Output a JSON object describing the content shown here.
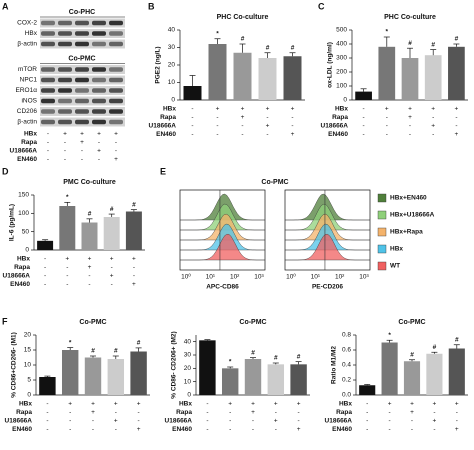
{
  "panel_labels": [
    "A",
    "B",
    "C",
    "D",
    "E",
    "F"
  ],
  "conditions": {
    "labels": [
      "HBx",
      "Rapa",
      "U18666A",
      "EN460"
    ],
    "signs": [
      [
        "-",
        "+",
        "+",
        "+",
        "+"
      ],
      [
        "-",
        "-",
        "+",
        "-",
        "-"
      ],
      [
        "-",
        "-",
        "-",
        "+",
        "-"
      ],
      [
        "-",
        "-",
        "-",
        "-",
        "+"
      ]
    ]
  },
  "blot": {
    "groups": [
      {
        "title": "Co-PHC",
        "rows": [
          "COX-2",
          "HBx",
          "β-actin"
        ]
      },
      {
        "title": "Co-PMC",
        "rows": [
          "mTOR",
          "NPC1",
          "ERO1α",
          "iNOS",
          "CD206",
          "β-actin"
        ]
      }
    ]
  },
  "flow": {
    "title": "Co-PMC",
    "xlabels": [
      "APC-CD86",
      "PE-CD206"
    ],
    "xticks": [
      "10⁰",
      "10¹",
      "10²",
      "10³"
    ],
    "series": [
      {
        "name": "HBx+EN460",
        "color": "#4f7f3a"
      },
      {
        "name": "HBx+U18666A",
        "color": "#8fd07a"
      },
      {
        "name": "HBx+Rapa",
        "color": "#f4b36b"
      },
      {
        "name": "HBx",
        "color": "#4fc3e8"
      },
      {
        "name": "WT",
        "color": "#f06060"
      }
    ]
  },
  "chart_data": [
    {
      "type": "bar",
      "title": "PHC Co-culture",
      "ylabel": "PGE2 (ng/L)",
      "values": [
        8,
        32,
        27,
        24,
        25
      ],
      "errors": [
        6,
        3,
        5,
        3,
        2
      ],
      "annotations": [
        null,
        "*",
        "#",
        "#",
        "#"
      ],
      "colors": [
        "#111111",
        "#777777",
        "#999999",
        "#cccccc",
        "#555555"
      ],
      "ylim": [
        0,
        40
      ],
      "yticks": [
        0,
        10,
        20,
        30,
        40
      ]
    },
    {
      "type": "bar",
      "title": "PHC Co-culture",
      "ylabel": "ox-LDL (ng/ml)",
      "values": [
        60,
        380,
        300,
        320,
        380
      ],
      "errors": [
        20,
        70,
        70,
        40,
        20
      ],
      "annotations": [
        null,
        "*",
        "#",
        "#",
        "#"
      ],
      "colors": [
        "#111111",
        "#777777",
        "#999999",
        "#cccccc",
        "#555555"
      ],
      "ylim": [
        0,
        500
      ],
      "yticks": [
        0,
        100,
        200,
        300,
        400,
        500
      ]
    },
    {
      "type": "bar",
      "title": "PMC Co-culture",
      "ylabel": "IL-6 (pg/mL)",
      "values": [
        25,
        120,
        75,
        90,
        105
      ],
      "errors": [
        3,
        10,
        10,
        8,
        5
      ],
      "annotations": [
        null,
        "*",
        "#",
        "#",
        "#"
      ],
      "colors": [
        "#111111",
        "#777777",
        "#999999",
        "#cccccc",
        "#555555"
      ],
      "ylim": [
        0,
        150
      ],
      "yticks": [
        0,
        50,
        100,
        150
      ]
    },
    {
      "type": "bar",
      "title": "Co-PMC",
      "ylabel": "% CD86+CD206- (M1)",
      "values": [
        6,
        15,
        12.5,
        12,
        14.5
      ],
      "errors": [
        0.3,
        0.8,
        0.5,
        1,
        1.2
      ],
      "annotations": [
        null,
        "*",
        "#",
        "#",
        "#"
      ],
      "colors": [
        "#111111",
        "#777777",
        "#999999",
        "#cccccc",
        "#555555"
      ],
      "ylim": [
        0,
        20
      ],
      "yticks": [
        0,
        5,
        10,
        15,
        20
      ]
    },
    {
      "type": "bar",
      "title": "Co-PMC",
      "ylabel": "% CD86- CD206+ (M2)",
      "values": [
        41,
        20,
        27,
        23,
        23
      ],
      "errors": [
        0.5,
        1,
        1,
        1,
        2
      ],
      "annotations": [
        null,
        "*",
        "#",
        "#",
        "#"
      ],
      "colors": [
        "#111111",
        "#777777",
        "#999999",
        "#cccccc",
        "#555555"
      ],
      "ylim": [
        0,
        45
      ],
      "yticks": [
        0,
        10,
        20,
        30,
        40
      ]
    },
    {
      "type": "bar",
      "title": "Co-PMC",
      "ylabel": "Ratio M1/M2",
      "values": [
        0.13,
        0.7,
        0.45,
        0.55,
        0.62
      ],
      "errors": [
        0.01,
        0.03,
        0.02,
        0.02,
        0.05
      ],
      "annotations": [
        null,
        "*",
        "#",
        "#",
        "#"
      ],
      "colors": [
        "#111111",
        "#777777",
        "#999999",
        "#cccccc",
        "#555555"
      ],
      "ylim": [
        0,
        0.8
      ],
      "yticks": [
        {
          "value": 0,
          "label": "0.0"
        },
        0.2,
        0.4,
        0.6,
        0.8
      ]
    }
  ]
}
